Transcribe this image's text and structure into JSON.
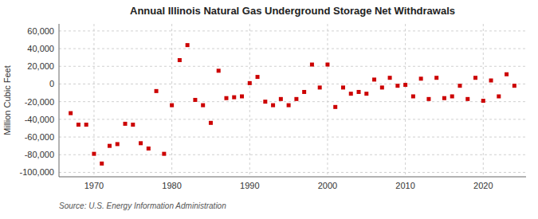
{
  "chart_data": {
    "type": "scatter",
    "title": "Annual Illinois Natural Gas Underground Storage Net Withdrawals",
    "ylabel": "Million Cubic Feet",
    "annotation": "Source: U.S. Energy Information Administration",
    "color": "#cc0000",
    "marker": "square",
    "grid": true,
    "xlim": [
      1965.5,
      2025.5
    ],
    "xticks": [
      1970,
      1980,
      1990,
      2000,
      2010,
      2020
    ],
    "ylim": [
      -105000,
      68000
    ],
    "yticks": [
      {
        "value": -100000,
        "label": "-100,000"
      },
      {
        "value": -80000,
        "label": "-80,000"
      },
      {
        "value": -60000,
        "label": "-60,000"
      },
      {
        "value": -40000,
        "label": "-40,000"
      },
      {
        "value": -20000,
        "label": "-20,000"
      },
      0,
      {
        "value": 20000,
        "label": "20,000"
      },
      {
        "value": 40000,
        "label": "40,000"
      },
      {
        "value": 60000,
        "label": "60,000"
      }
    ],
    "x": [
      1967,
      1968,
      1969,
      1970,
      1971,
      1972,
      1973,
      1974,
      1975,
      1976,
      1977,
      1978,
      1979,
      1980,
      1981,
      1982,
      1983,
      1984,
      1985,
      1986,
      1987,
      1988,
      1989,
      1990,
      1991,
      1992,
      1993,
      1994,
      1995,
      1996,
      1997,
      1998,
      1999,
      2000,
      2001,
      2002,
      2003,
      2004,
      2005,
      2006,
      2007,
      2008,
      2009,
      2010,
      2011,
      2012,
      2013,
      2014,
      2015,
      2016,
      2017,
      2018,
      2019,
      2020,
      2021,
      2022,
      2023,
      2024
    ],
    "values": [
      -33000,
      -46000,
      -46000,
      -79000,
      -90000,
      -70000,
      -68000,
      -45000,
      -46000,
      -67000,
      -73000,
      -8000,
      -79000,
      -24000,
      27000,
      44000,
      -18000,
      -24000,
      -44000,
      15000,
      -16000,
      -15000,
      -14000,
      1000,
      8000,
      -20000,
      -24000,
      -17000,
      -24000,
      -17000,
      -9000,
      22000,
      -4000,
      22000,
      -26000,
      -4000,
      -11000,
      -9000,
      -11000,
      5000,
      -4000,
      7000,
      -2000,
      -1000,
      -14000,
      6000,
      -17000,
      7000,
      -16000,
      -14000,
      -2000,
      -17000,
      7000,
      -19000,
      4000,
      -14000,
      11000,
      -2000
    ]
  }
}
